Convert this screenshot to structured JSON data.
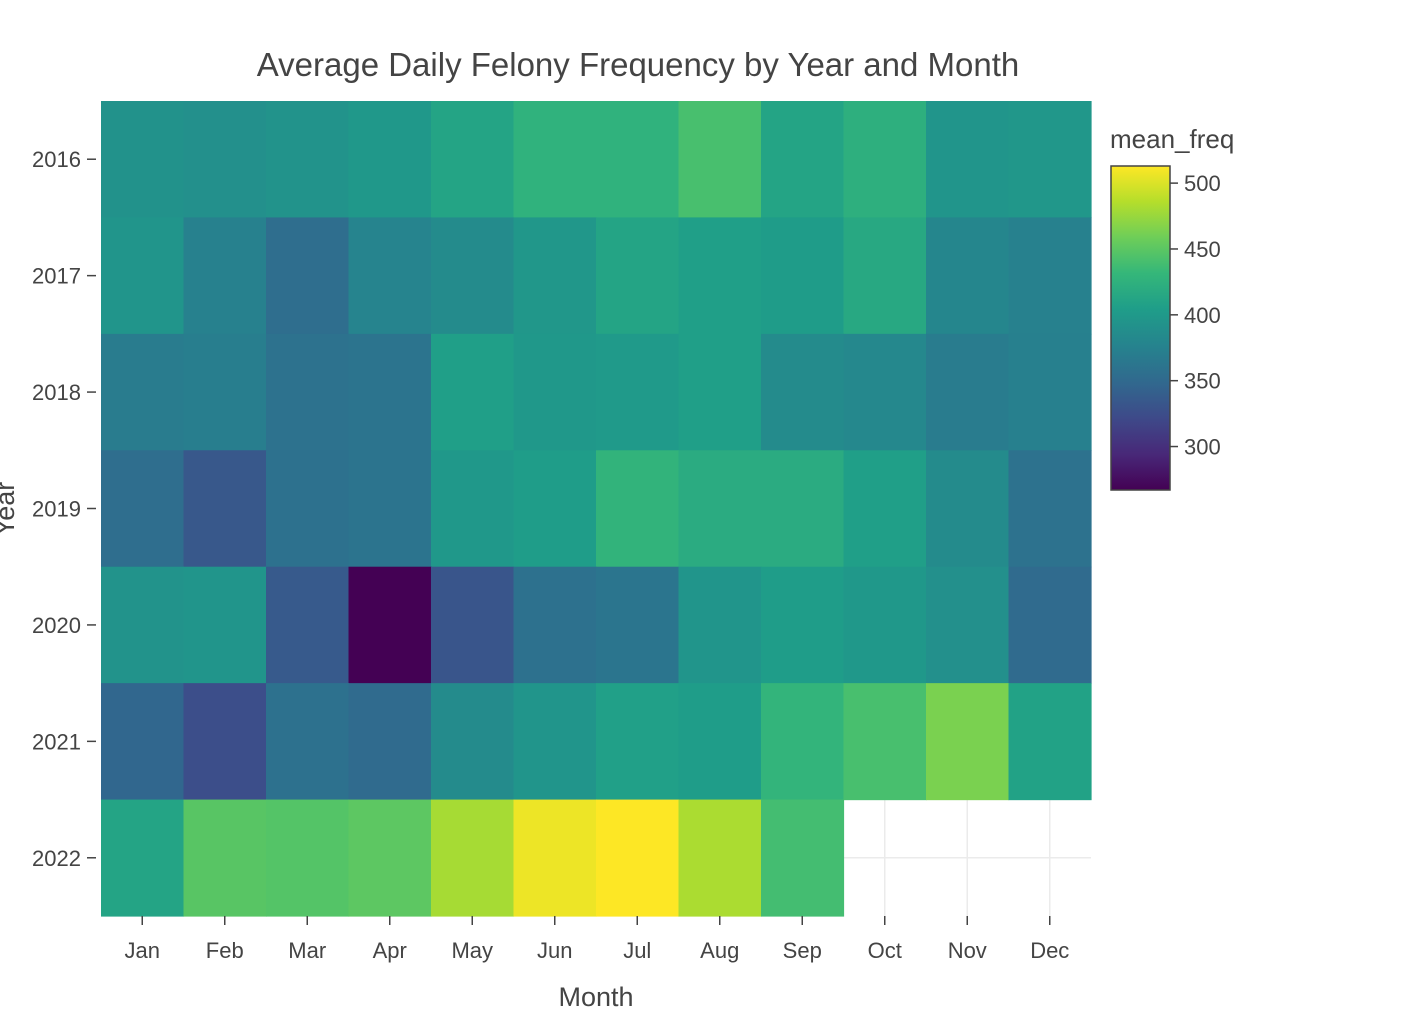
{
  "chart_data": {
    "type": "heatmap",
    "title": "Average Daily Felony Frequency by Year and Month",
    "xlabel": "Month",
    "ylabel": "Year",
    "x": [
      "Jan",
      "Feb",
      "Mar",
      "Apr",
      "May",
      "Jun",
      "Jul",
      "Aug",
      "Sep",
      "Oct",
      "Nov",
      "Dec"
    ],
    "y": [
      "2016",
      "2017",
      "2018",
      "2019",
      "2020",
      "2021",
      "2022"
    ],
    "z": [
      [
        392,
        390,
        393,
        398,
        410,
        425,
        425,
        440,
        410,
        422,
        395,
        397
      ],
      [
        395,
        375,
        355,
        378,
        385,
        397,
        410,
        405,
        402,
        415,
        380,
        375
      ],
      [
        370,
        372,
        360,
        362,
        405,
        398,
        400,
        405,
        385,
        382,
        370,
        374
      ],
      [
        355,
        335,
        358,
        362,
        398,
        403,
        427,
        418,
        418,
        405,
        385,
        360
      ],
      [
        393,
        395,
        337,
        267,
        332,
        358,
        363,
        395,
        403,
        398,
        390,
        352
      ],
      [
        348,
        326,
        358,
        352,
        385,
        395,
        406,
        403,
        428,
        440,
        463,
        408
      ],
      [
        410,
        448,
        446,
        450,
        480,
        507,
        513,
        482,
        438,
        null,
        null,
        null
      ]
    ],
    "colorbar": {
      "title": "mean_freq",
      "min": 267,
      "max": 513,
      "ticks": [
        300,
        350,
        400,
        450,
        500
      ],
      "colorscale": "Viridis"
    },
    "grid": true
  }
}
